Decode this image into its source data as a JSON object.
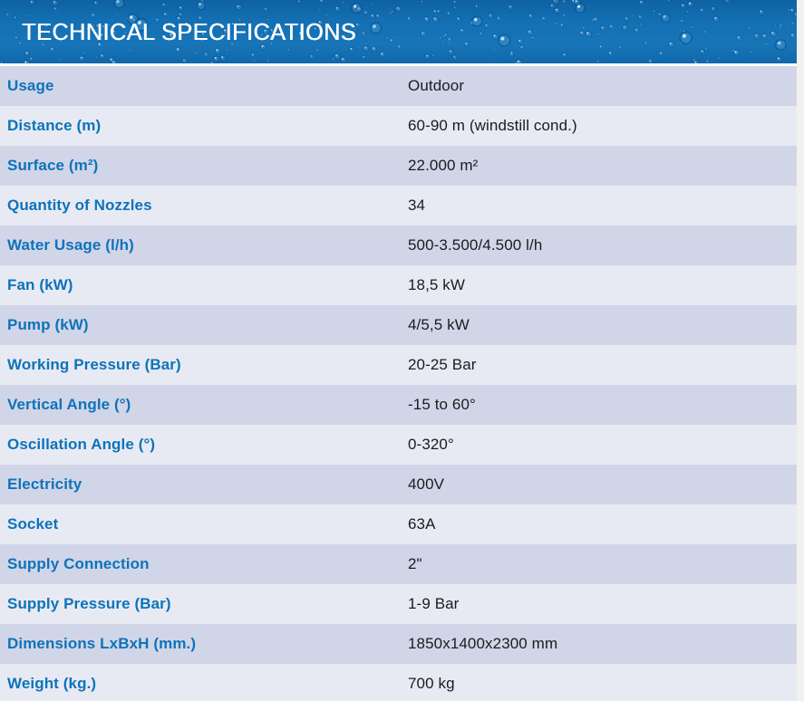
{
  "header": {
    "title": "TECHNICAL SPECIFICATIONS"
  },
  "table": {
    "rows": [
      {
        "label": "Usage",
        "value": "Outdoor"
      },
      {
        "label": "Distance (m)",
        "value": "60-90 m (windstill cond.)"
      },
      {
        "label": "Surface (m²)",
        "value": "22.000 m²"
      },
      {
        "label": "Quantity of Nozzles",
        "value": "34"
      },
      {
        "label": "Water Usage (l/h)",
        "value": "500-3.500/4.500 l/h"
      },
      {
        "label": "Fan (kW)",
        "value": "18,5 kW"
      },
      {
        "label": "Pump (kW)",
        "value": "4/5,5 kW"
      },
      {
        "label": "Working Pressure (Bar)",
        "value": "20-25 Bar"
      },
      {
        "label": "Vertical Angle (°)",
        "value": "-15 to 60°"
      },
      {
        "label": "Oscillation Angle (°)",
        "value": "0-320°"
      },
      {
        "label": "Electricity",
        "value": "400V"
      },
      {
        "label": "Socket",
        "value": "63A"
      },
      {
        "label": "Supply Connection",
        "value": "2\""
      },
      {
        "label": "Supply Pressure (Bar)",
        "value": "1-9 Bar"
      },
      {
        "label": "Dimensions LxBxH (mm.)",
        "value": "1850x1400x2300 mm"
      },
      {
        "label": "Weight (kg.)",
        "value": "700 kg"
      }
    ]
  },
  "colors": {
    "banner_blue": "#1470b4",
    "label_blue": "#0d73ba",
    "value_ink": "#1b1b1d",
    "row_dark": "#d1d5e8",
    "row_light": "#e8eaf3",
    "edge_strip": "#f2f1ee"
  }
}
